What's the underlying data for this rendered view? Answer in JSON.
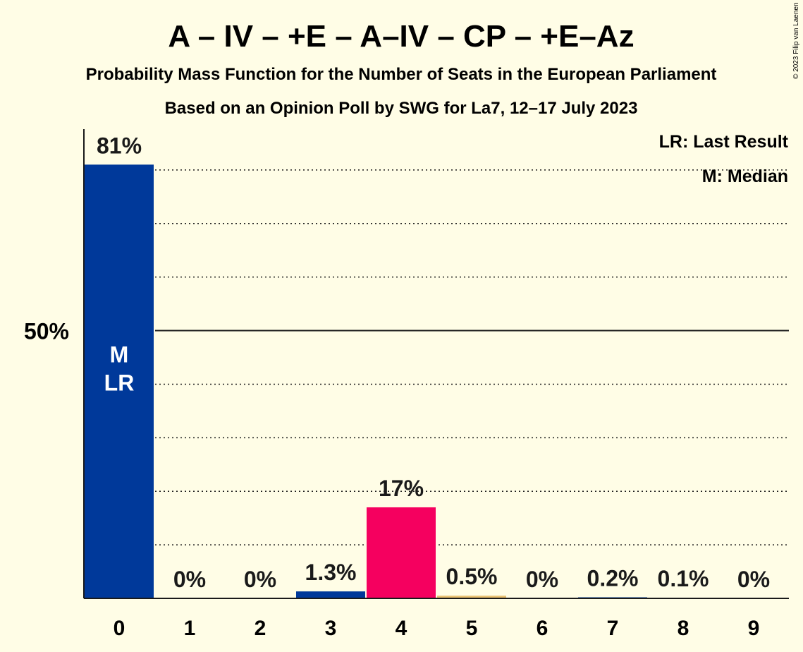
{
  "header": {
    "title": "A – IV – +E – A–IV – CP – +E–Az",
    "subtitle": "Probability Mass Function for the Number of Seats in the European Parliament",
    "source": "Based on an Opinion Poll by SWG for La7, 12–17 July 2023",
    "copyright": "© 2023 Filip van Laenen"
  },
  "legend": {
    "last_result": "LR: Last Result",
    "median": "M: Median"
  },
  "colors": {
    "background": "#fffde6",
    "primary_bar": "#00399a",
    "highlight_bar": "#f5005f",
    "small_bar": "#e8c070",
    "inbar_text": "#ffffff"
  },
  "chart_data": {
    "type": "bar",
    "categories": [
      "0",
      "1",
      "2",
      "3",
      "4",
      "5",
      "6",
      "7",
      "8",
      "9"
    ],
    "values": [
      81,
      0,
      0,
      1.3,
      17,
      0.5,
      0,
      0.2,
      0.1,
      0
    ],
    "data_labels": [
      "81%",
      "0%",
      "0%",
      "1.3%",
      "17%",
      "0.5%",
      "0%",
      "0.2%",
      "0.1%",
      "0%"
    ],
    "bar_colors": [
      "#00399a",
      "#00399a",
      "#00399a",
      "#00399a",
      "#f5005f",
      "#e8c070",
      "#00399a",
      "#00399a",
      "#00399a",
      "#00399a"
    ],
    "median_index": 0,
    "last_result_index": 0,
    "median_marker": "M",
    "last_result_marker": "LR",
    "ylim": [
      0,
      90
    ],
    "yticks": [
      {
        "value": 50,
        "label": "50%"
      }
    ],
    "gridlines": [
      10,
      20,
      30,
      40,
      60,
      70,
      80
    ],
    "major_gridline": 50,
    "legend_position": "top-right"
  }
}
